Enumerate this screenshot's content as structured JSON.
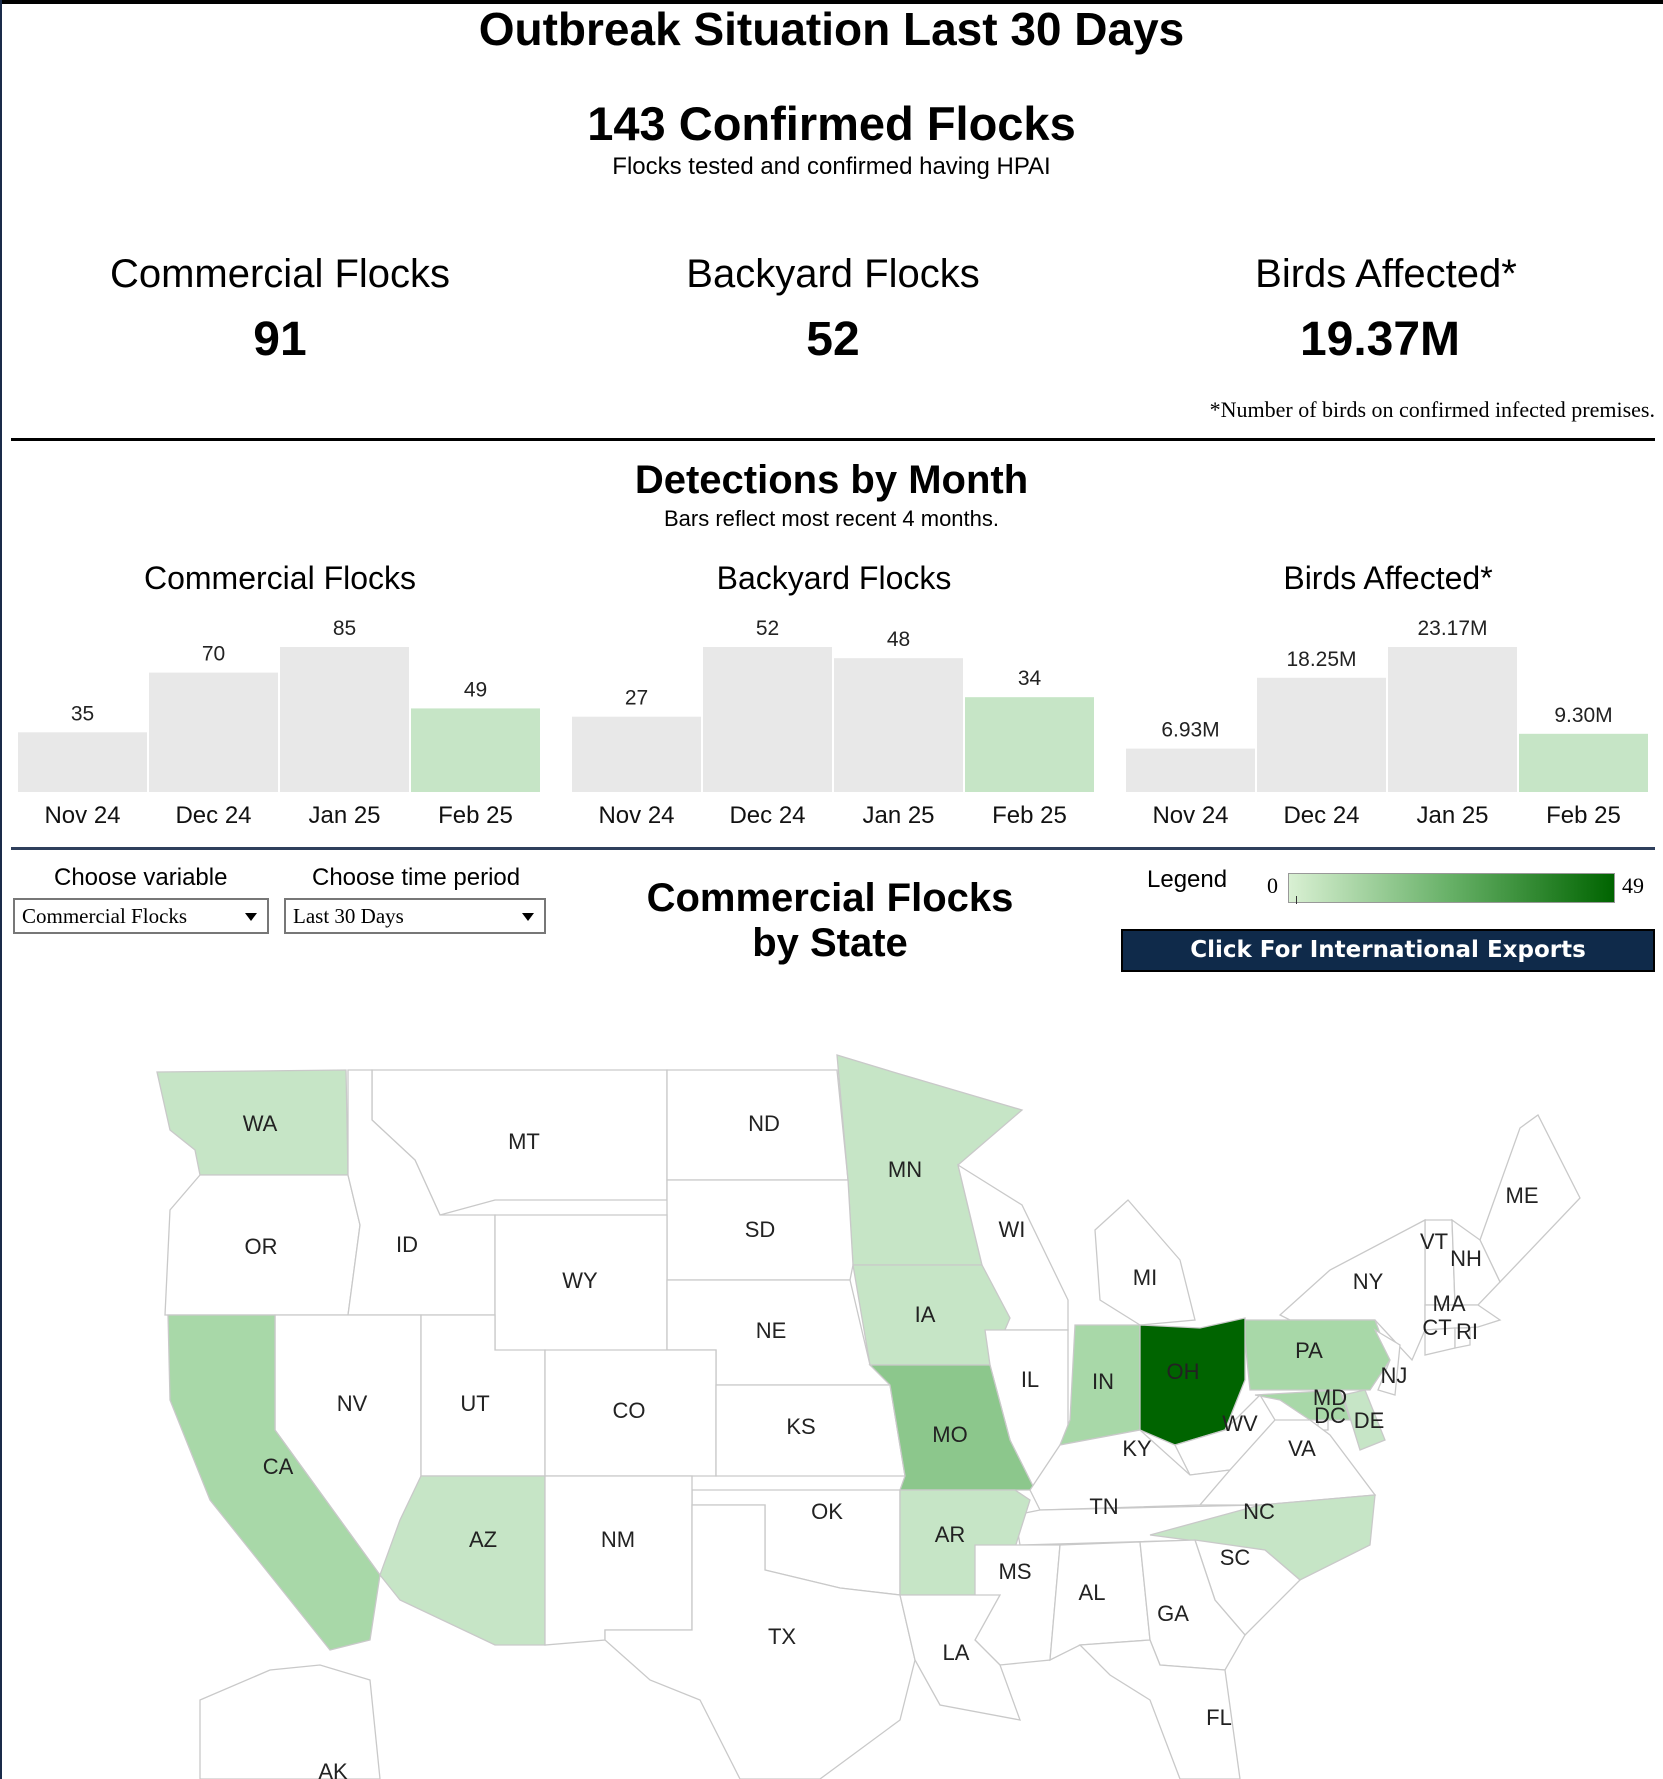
{
  "header": {
    "title": "Outbreak Situation Last 30 Days",
    "confirmed": "143 Confirmed Flocks",
    "confirmed_sub": "Flocks tested and confirmed having HPAI"
  },
  "kpis": [
    {
      "label": "Commercial Flocks",
      "value": "91"
    },
    {
      "label": "Backyard Flocks",
      "value": "52"
    },
    {
      "label": "Birds Affected*",
      "value": "19.37M"
    }
  ],
  "birds_note": "*Number of birds on confirmed infected premises.",
  "detections": {
    "title": "Detections by Month",
    "subtitle": "Bars reflect most recent 4 months."
  },
  "chart_data": [
    {
      "type": "bar",
      "title": "Commercial Flocks",
      "categories": [
        "Nov 24",
        "Dec 24",
        "Jan 25",
        "Feb 25"
      ],
      "values": [
        35,
        70,
        85,
        49
      ],
      "labels": [
        "35",
        "70",
        "85",
        "49"
      ],
      "colors": [
        "#e8e8e8",
        "#e8e8e8",
        "#e8e8e8",
        "#c6e5c6"
      ]
    },
    {
      "type": "bar",
      "title": "Backyard Flocks",
      "categories": [
        "Nov 24",
        "Dec 24",
        "Jan 25",
        "Feb 25"
      ],
      "values": [
        27,
        52,
        48,
        34
      ],
      "labels": [
        "27",
        "52",
        "48",
        "34"
      ],
      "colors": [
        "#e8e8e8",
        "#e8e8e8",
        "#e8e8e8",
        "#c6e5c6"
      ]
    },
    {
      "type": "bar",
      "title": "Birds Affected*",
      "categories": [
        "Nov 24",
        "Dec 24",
        "Jan 25",
        "Feb 25"
      ],
      "values": [
        6.93,
        18.25,
        23.17,
        9.3
      ],
      "labels": [
        "6.93M",
        "18.25M",
        "23.17M",
        "9.30M"
      ],
      "colors": [
        "#e8e8e8",
        "#e8e8e8",
        "#e8e8e8",
        "#c6e5c6"
      ]
    }
  ],
  "controls": {
    "variable_label": "Choose variable",
    "variable_value": "Commercial Flocks",
    "period_label": "Choose time period",
    "period_value": "Last 30 Days"
  },
  "map": {
    "title_line1": "Commercial Flocks",
    "title_line2": "by State",
    "legend_label": "Legend",
    "legend_min": "0",
    "legend_max": "49",
    "export_button": "Click For International Exports",
    "states": [
      {
        "abbr": "WA"
      },
      {
        "abbr": "MT"
      },
      {
        "abbr": "ND"
      },
      {
        "abbr": "MN"
      },
      {
        "abbr": "ME"
      },
      {
        "abbr": "OR"
      },
      {
        "abbr": "ID"
      },
      {
        "abbr": "SD"
      },
      {
        "abbr": "WI"
      },
      {
        "abbr": "VT"
      },
      {
        "abbr": "NH"
      },
      {
        "abbr": "WY"
      },
      {
        "abbr": "MI"
      },
      {
        "abbr": "NY"
      },
      {
        "abbr": "MA"
      },
      {
        "abbr": "IA"
      },
      {
        "abbr": "CT"
      },
      {
        "abbr": "RI"
      },
      {
        "abbr": "NE"
      },
      {
        "abbr": "PA"
      },
      {
        "abbr": "IL"
      },
      {
        "abbr": "IN"
      },
      {
        "abbr": "OH"
      },
      {
        "abbr": "NJ"
      },
      {
        "abbr": "NV"
      },
      {
        "abbr": "UT"
      },
      {
        "abbr": "CO"
      },
      {
        "abbr": "MD"
      },
      {
        "abbr": "DC"
      },
      {
        "abbr": "DE"
      },
      {
        "abbr": "KS"
      },
      {
        "abbr": "WV"
      },
      {
        "abbr": "CA"
      },
      {
        "abbr": "MO"
      },
      {
        "abbr": "KY"
      },
      {
        "abbr": "VA"
      },
      {
        "abbr": "TN"
      },
      {
        "abbr": "OK"
      },
      {
        "abbr": "NC"
      },
      {
        "abbr": "AR"
      },
      {
        "abbr": "AZ"
      },
      {
        "abbr": "NM"
      },
      {
        "abbr": "SC"
      },
      {
        "abbr": "MS"
      },
      {
        "abbr": "AL"
      },
      {
        "abbr": "GA"
      },
      {
        "abbr": "TX"
      },
      {
        "abbr": "LA"
      },
      {
        "abbr": "FL"
      },
      {
        "abbr": "AK"
      }
    ]
  }
}
